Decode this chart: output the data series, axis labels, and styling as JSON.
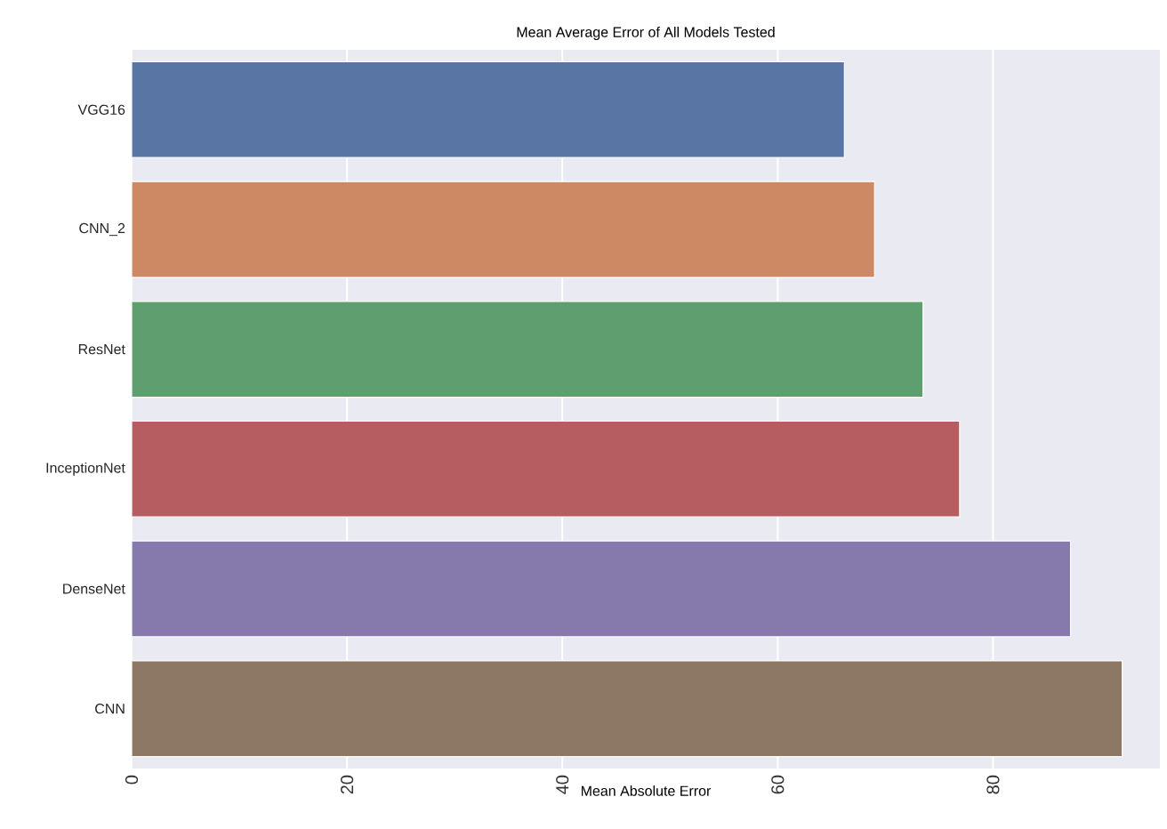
{
  "chart_data": {
    "type": "bar",
    "orientation": "horizontal",
    "title": "Mean Average Error of All Models Tested",
    "xlabel": "Mean Absolute Error",
    "categories": [
      "VGG16",
      "CNN_2",
      "ResNet",
      "InceptionNet",
      "DenseNet",
      "CNN"
    ],
    "values": [
      66.2,
      69.0,
      73.5,
      76.9,
      87.2,
      92.0
    ],
    "colors": [
      "#5875a4",
      "#cc8963",
      "#5f9e6e",
      "#b55d60",
      "#857aab",
      "#8d7866"
    ],
    "xlim": [
      0,
      95.5
    ],
    "xticks": [
      0,
      20,
      40,
      60,
      80
    ],
    "grid": "x"
  }
}
